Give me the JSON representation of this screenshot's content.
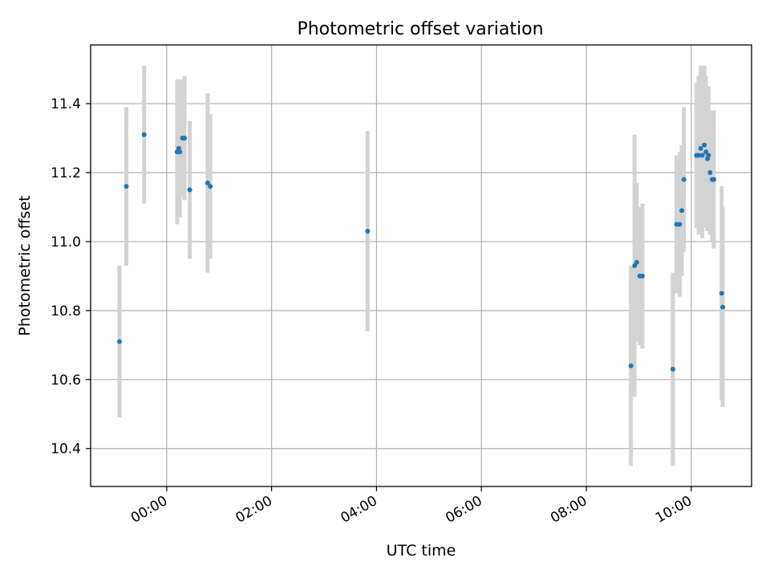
{
  "chart_data": {
    "type": "scatter",
    "title": "Photometric offset variation",
    "xlabel": "UTC time",
    "ylabel": "Photometric offset",
    "x_unit": "hours (UTC)",
    "xlim": [
      -1.45,
      11.15
    ],
    "ylim": [
      10.29,
      11.57
    ],
    "grid": true,
    "point_color": "#1f77b4",
    "errorbar_color": "#d3d3d3",
    "x_ticks": [
      {
        "value": 0,
        "label": "00:00"
      },
      {
        "value": 2,
        "label": "02:00"
      },
      {
        "value": 4,
        "label": "04:00"
      },
      {
        "value": 6,
        "label": "06:00"
      },
      {
        "value": 8,
        "label": "08:00"
      },
      {
        "value": 10,
        "label": "10:00"
      }
    ],
    "y_ticks": [
      {
        "value": 10.4,
        "label": "10.4"
      },
      {
        "value": 10.6,
        "label": "10.6"
      },
      {
        "value": 10.8,
        "label": "10.8"
      },
      {
        "value": 11.0,
        "label": "11.0"
      },
      {
        "value": 11.2,
        "label": "11.2"
      },
      {
        "value": 11.4,
        "label": "11.4"
      }
    ],
    "points": [
      {
        "x": -0.9,
        "y": 10.71,
        "err": 0.22
      },
      {
        "x": -0.77,
        "y": 11.16,
        "err": 0.23
      },
      {
        "x": -0.43,
        "y": 11.31,
        "err": 0.2
      },
      {
        "x": 0.2,
        "y": 11.26,
        "err": 0.21
      },
      {
        "x": 0.23,
        "y": 11.27,
        "err": 0.2
      },
      {
        "x": 0.25,
        "y": 11.26,
        "err": 0.19
      },
      {
        "x": 0.3,
        "y": 11.3,
        "err": 0.17
      },
      {
        "x": 0.34,
        "y": 11.3,
        "err": 0.18
      },
      {
        "x": 0.44,
        "y": 11.15,
        "err": 0.2
      },
      {
        "x": 0.78,
        "y": 11.17,
        "err": 0.26
      },
      {
        "x": 0.83,
        "y": 11.16,
        "err": 0.21
      },
      {
        "x": 3.83,
        "y": 11.03,
        "err": 0.29
      },
      {
        "x": 8.85,
        "y": 10.64,
        "err": 0.29
      },
      {
        "x": 8.92,
        "y": 10.93,
        "err": 0.38
      },
      {
        "x": 8.96,
        "y": 10.94,
        "err": 0.23
      },
      {
        "x": 9.02,
        "y": 10.9,
        "err": 0.2
      },
      {
        "x": 9.07,
        "y": 10.9,
        "err": 0.21
      },
      {
        "x": 9.65,
        "y": 10.63,
        "err": 0.28
      },
      {
        "x": 9.72,
        "y": 11.05,
        "err": 0.2
      },
      {
        "x": 9.78,
        "y": 11.05,
        "err": 0.21
      },
      {
        "x": 9.82,
        "y": 11.09,
        "err": 0.19
      },
      {
        "x": 9.86,
        "y": 11.18,
        "err": 0.21
      },
      {
        "x": 10.1,
        "y": 11.25,
        "err": 0.21
      },
      {
        "x": 10.14,
        "y": 11.25,
        "err": 0.23
      },
      {
        "x": 10.18,
        "y": 11.27,
        "err": 0.24
      },
      {
        "x": 10.21,
        "y": 11.25,
        "err": 0.24
      },
      {
        "x": 10.25,
        "y": 11.28,
        "err": 0.23
      },
      {
        "x": 10.28,
        "y": 11.26,
        "err": 0.22
      },
      {
        "x": 10.31,
        "y": 11.24,
        "err": 0.21
      },
      {
        "x": 10.33,
        "y": 11.25,
        "err": 0.2
      },
      {
        "x": 10.36,
        "y": 11.2,
        "err": 0.18
      },
      {
        "x": 10.4,
        "y": 11.18,
        "err": 0.18
      },
      {
        "x": 10.43,
        "y": 11.18,
        "err": 0.2
      },
      {
        "x": 10.58,
        "y": 10.85,
        "err": 0.31
      },
      {
        "x": 10.6,
        "y": 10.81,
        "err": 0.29
      }
    ]
  }
}
